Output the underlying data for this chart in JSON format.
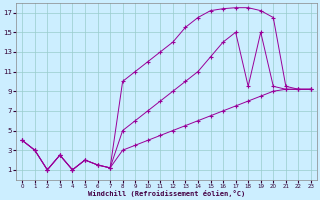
{
  "xlabel": "Windchill (Refroidissement éolien,°C)",
  "bg_color": "#cceeff",
  "grid_color": "#99cccc",
  "line_color": "#990099",
  "xlim": [
    -0.5,
    23.5
  ],
  "ylim": [
    0,
    18
  ],
  "xticks": [
    0,
    1,
    2,
    3,
    4,
    5,
    6,
    7,
    8,
    9,
    10,
    11,
    12,
    13,
    14,
    15,
    16,
    17,
    18,
    19,
    20,
    21,
    22,
    23
  ],
  "yticks": [
    1,
    3,
    5,
    7,
    9,
    11,
    13,
    15,
    17
  ],
  "line1_x": [
    0,
    1,
    2,
    3,
    4,
    5,
    6,
    7,
    8,
    9,
    10,
    11,
    12,
    13,
    14,
    15,
    16,
    17,
    18,
    19,
    20,
    21,
    22,
    23
  ],
  "line1_y": [
    4,
    3,
    1,
    2.5,
    1,
    2,
    1.5,
    1.2,
    10,
    11,
    12,
    13,
    14,
    15.5,
    16.5,
    17.2,
    17.4,
    17.5,
    17.5,
    17.2,
    16.5,
    9.5,
    9.2,
    9.2
  ],
  "line2_x": [
    0,
    1,
    2,
    3,
    4,
    5,
    6,
    7,
    8,
    9,
    10,
    11,
    12,
    13,
    14,
    15,
    16,
    17,
    18,
    19,
    20,
    21,
    22,
    23
  ],
  "line2_y": [
    4,
    3,
    1,
    2.5,
    1,
    2,
    1.5,
    1.2,
    5,
    6,
    7,
    8,
    9,
    10,
    11,
    12.5,
    14,
    15,
    9.5,
    15,
    9.5,
    9.2,
    9.2,
    9.2
  ],
  "line3_x": [
    0,
    1,
    2,
    3,
    4,
    5,
    6,
    7,
    8,
    9,
    10,
    11,
    12,
    13,
    14,
    15,
    16,
    17,
    18,
    19,
    20,
    21,
    22,
    23
  ],
  "line3_y": [
    4,
    3,
    1,
    2.5,
    1,
    2,
    1.5,
    1.2,
    3,
    3.5,
    4,
    4.5,
    5,
    5.5,
    6,
    6.5,
    7,
    7.5,
    8,
    8.5,
    9,
    9.2,
    9.2,
    9.2
  ]
}
